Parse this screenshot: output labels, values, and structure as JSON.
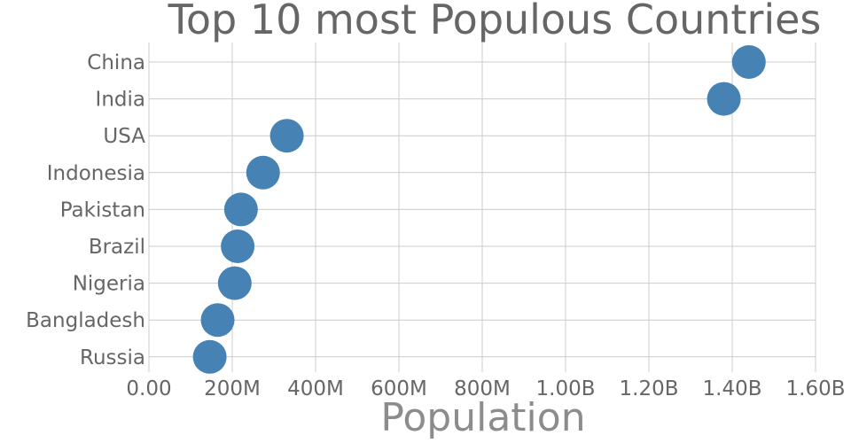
{
  "chart_data": {
    "type": "scatter",
    "title": "Top 10 most Populous Countries",
    "xlabel": "Population",
    "ylabel": "",
    "categories": [
      "China",
      "India",
      "USA",
      "Indonesia",
      "Pakistan",
      "Brazil",
      "Nigeria",
      "Bangladesh",
      "Russia"
    ],
    "values": [
      1440000000,
      1380000000,
      331000000,
      274000000,
      221000000,
      213000000,
      206000000,
      165000000,
      146000000
    ],
    "xlim": [
      0,
      1600000000
    ],
    "x_ticks": [
      0,
      200000000,
      400000000,
      600000000,
      800000000,
      1000000000,
      1200000000,
      1400000000,
      1600000000
    ],
    "x_tick_labels": [
      "0.00",
      "200M",
      "400M",
      "600M",
      "800M",
      "1.00B",
      "1.20B",
      "1.40B",
      "1.60B"
    ],
    "grid": true,
    "marker_color": "#4682b4"
  }
}
